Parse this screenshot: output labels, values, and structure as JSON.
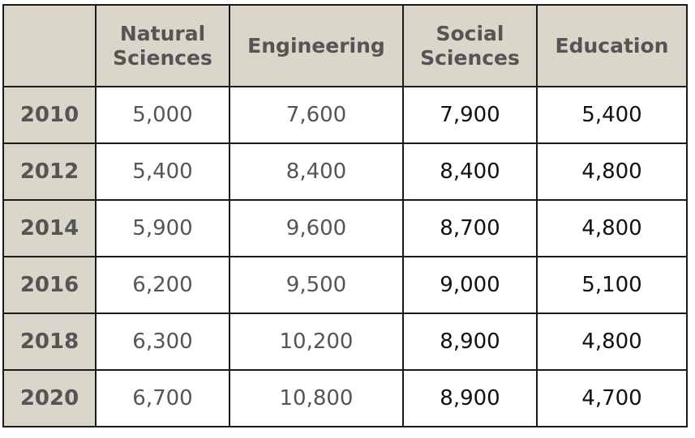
{
  "chart_data": {
    "type": "table",
    "columns": [
      "Natural Sciences",
      "Engineering",
      "Social Sciences",
      "Education"
    ],
    "column_header_lines": [
      [
        "Natural",
        "Sciences"
      ],
      [
        "Engineering"
      ],
      [
        "Social",
        "Sciences"
      ],
      [
        "Education"
      ]
    ],
    "rows": [
      {
        "year": "2010",
        "values": [
          "5,000",
          "7,600",
          "7,900",
          "5,400"
        ]
      },
      {
        "year": "2012",
        "values": [
          "5,400",
          "8,400",
          "8,400",
          "4,800"
        ]
      },
      {
        "year": "2014",
        "values": [
          "5,900",
          "9,600",
          "8,700",
          "4,800"
        ]
      },
      {
        "year": "2016",
        "values": [
          "6,200",
          "9,500",
          "9,000",
          "5,100"
        ]
      },
      {
        "year": "2018",
        "values": [
          "6,300",
          "10,200",
          "8,900",
          "4,800"
        ]
      },
      {
        "year": "2020",
        "values": [
          "6,700",
          "10,800",
          "8,900",
          "4,700"
        ]
      }
    ]
  },
  "colors": {
    "header_bg": "#dbd6ca",
    "header_text": "#555555",
    "border": "#1a1a1a",
    "value_text_light": "#555555",
    "value_text_dark": "#111111"
  }
}
